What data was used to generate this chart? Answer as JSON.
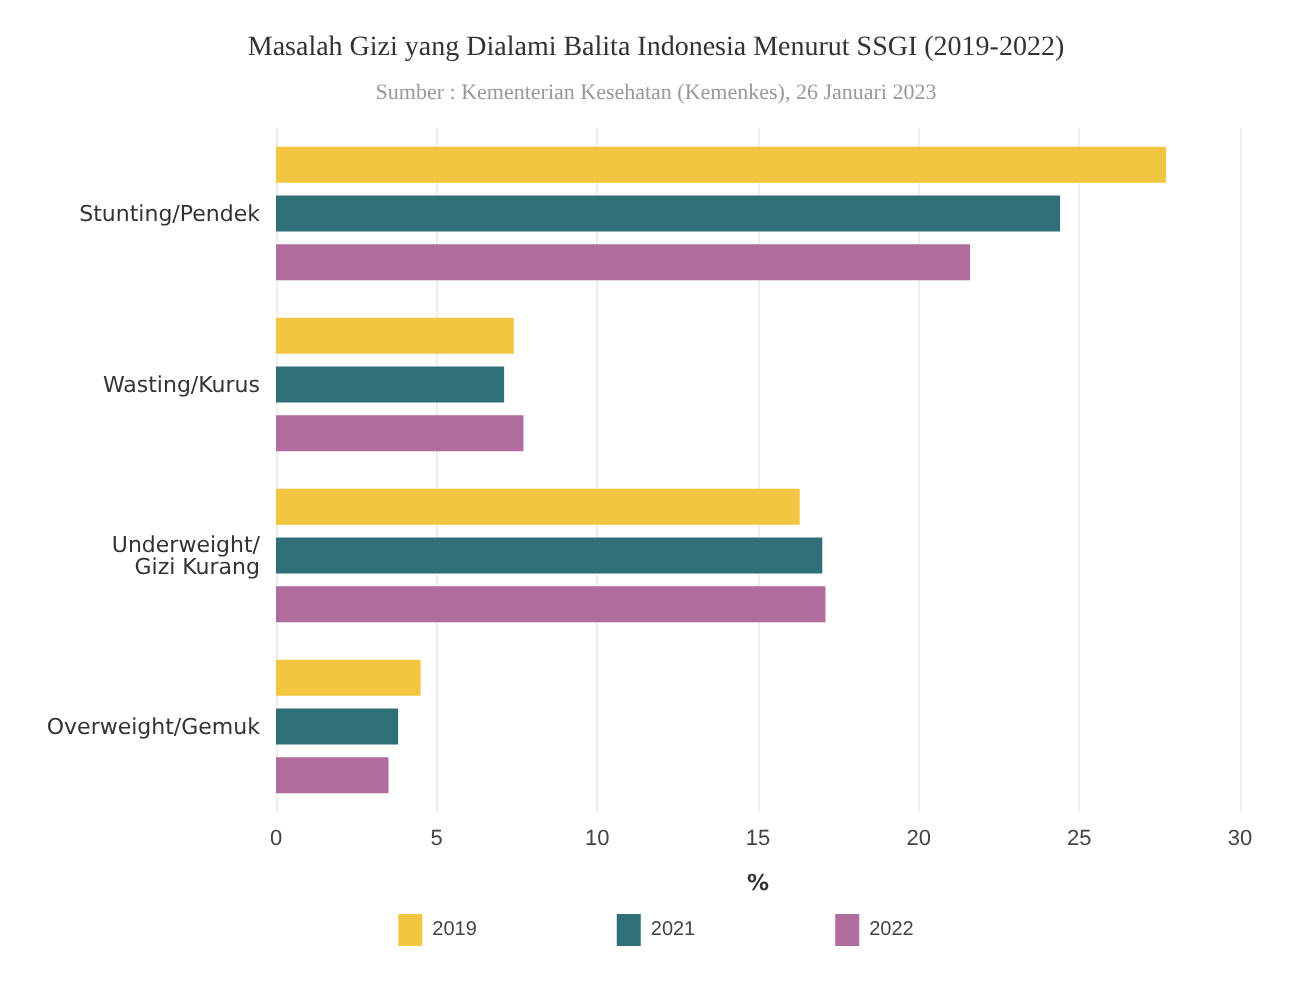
{
  "chart_data": {
    "type": "bar",
    "orientation": "horizontal",
    "title": "Masalah Gizi yang Dialami Balita Indonesia Menurut SSGI (2019-2022)",
    "subtitle": "Sumber : Kementerian Kesehatan (Kemenkes), 26 Januari 2023",
    "xlabel": "%",
    "categories": [
      "Stunting/Pendek",
      "Wasting/Kurus",
      "Underweight/\nGizi Kurang",
      "Overweight/Gemuk"
    ],
    "series": [
      {
        "name": "2019",
        "color": "#f2c641",
        "values": [
          27.7,
          7.4,
          16.3,
          4.5
        ]
      },
      {
        "name": "2021",
        "color": "#2f6f78",
        "values": [
          24.4,
          7.1,
          17.0,
          3.8
        ]
      },
      {
        "name": "2022",
        "color": "#b06c9c",
        "values": [
          21.6,
          7.7,
          17.1,
          3.5
        ]
      }
    ],
    "xlim": [
      0,
      30
    ],
    "xticks": [
      0,
      5,
      10,
      15,
      20,
      25,
      30
    ],
    "grid": "x",
    "legend": "bottom"
  }
}
